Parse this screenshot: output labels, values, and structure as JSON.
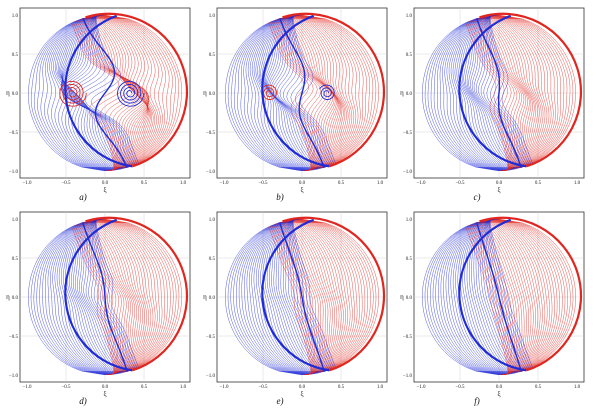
{
  "colors": {
    "blue": "#1f2bd6",
    "red": "#e0261f",
    "frame": "#333333",
    "grid": "#cccccc"
  },
  "axes": {
    "xlabel": "ξ",
    "ylabel": "η",
    "xticks": [
      "−1.0",
      "−0.5",
      "0.0",
      "0.5",
      "1.0"
    ],
    "yticks": [
      "1.0",
      "0.5",
      "0.0",
      "−0.5",
      "−1.0"
    ]
  },
  "panels": [
    {
      "label": "a)",
      "kind": "spiral",
      "strength": 1.0
    },
    {
      "label": "b)",
      "kind": "spiral",
      "strength": 0.55
    },
    {
      "label": "c)",
      "kind": "s-curve",
      "strength": 0.35
    },
    {
      "label": "d)",
      "kind": "s-curve",
      "strength": 0.22
    },
    {
      "label": "e)",
      "kind": "s-curve",
      "strength": 0.12
    },
    {
      "label": "f)",
      "kind": "s-curve",
      "strength": 0.05
    }
  ]
}
